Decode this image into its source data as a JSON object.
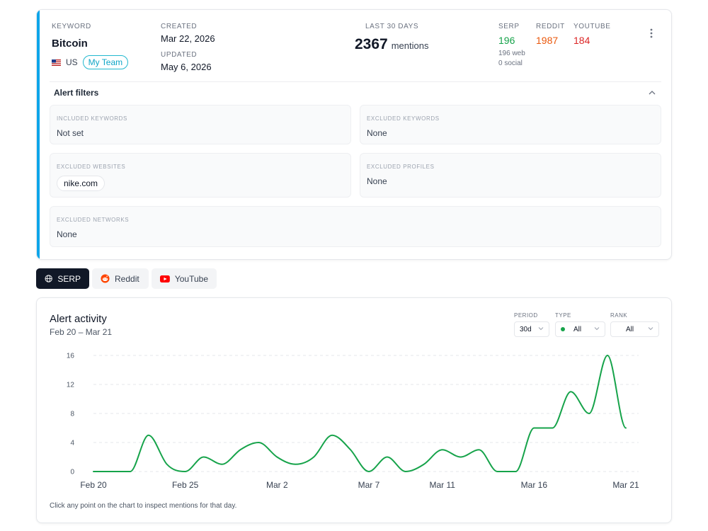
{
  "keyword": {
    "label": "KEYWORD",
    "name": "Bitcoin",
    "country": "US",
    "team": "My Team"
  },
  "dates": {
    "created_label": "CREATED",
    "created": "Mar 22, 2026",
    "updated_label": "UPDATED",
    "updated": "May 6, 2026"
  },
  "summary": {
    "label": "LAST 30 DAYS",
    "count": "2367",
    "unit": "mentions"
  },
  "sources": {
    "serp_label": "SERP",
    "serp_value": "196",
    "serp_web": "196 web",
    "serp_social": "0 social",
    "reddit_label": "REDDIT",
    "reddit_value": "1987",
    "youtube_label": "YOUTUBE",
    "youtube_value": "184"
  },
  "filters": {
    "title": "Alert filters",
    "included_keywords_label": "INCLUDED KEYWORDS",
    "included_keywords": "Not set",
    "excluded_keywords_label": "EXCLUDED KEYWORDS",
    "excluded_keywords": "None",
    "excluded_websites_label": "EXCLUDED WEBSITES",
    "excluded_websites_chip": "nike.com",
    "excluded_profiles_label": "EXCLUDED PROFILES",
    "excluded_profiles": "None",
    "excluded_networks_label": "EXCLUDED NETWORKS",
    "excluded_networks": "None"
  },
  "tabs": {
    "serp": "SERP",
    "reddit": "Reddit",
    "youtube": "YouTube"
  },
  "activity": {
    "title": "Alert activity",
    "range": "Feb 20 – Mar 21",
    "period_label": "PERIOD",
    "period_value": "30d",
    "type_label": "TYPE",
    "type_value": "All",
    "rank_label": "RANK",
    "rank_value": "All",
    "hint": "Click any point on the chart to inspect mentions for that day."
  },
  "colors": {
    "accent": "#0ea5e9",
    "line": "#16a34a",
    "serp": "#16a34a",
    "reddit": "#ea580c",
    "youtube": "#dc2626"
  },
  "chart_data": {
    "type": "line",
    "title": "",
    "xlabel": "",
    "ylabel": "",
    "ylim": [
      0,
      16
    ],
    "yticks": [
      0,
      4,
      8,
      12,
      16
    ],
    "grid": true,
    "x": [
      "Feb 20",
      "Feb 21",
      "Feb 22",
      "Feb 23",
      "Feb 24",
      "Feb 25",
      "Feb 26",
      "Feb 27",
      "Feb 28",
      "Mar 1",
      "Mar 2",
      "Mar 3",
      "Mar 4",
      "Mar 5",
      "Mar 6",
      "Mar 7",
      "Mar 8",
      "Mar 9",
      "Mar 10",
      "Mar 11",
      "Mar 12",
      "Mar 13",
      "Mar 14",
      "Mar 15",
      "Mar 16",
      "Mar 17",
      "Mar 18",
      "Mar 19",
      "Mar 20",
      "Mar 21"
    ],
    "xtick_labels": [
      {
        "label": "Feb 20",
        "index": 0
      },
      {
        "label": "Feb 25",
        "index": 5
      },
      {
        "label": "Mar 2",
        "index": 10
      },
      {
        "label": "Mar 7",
        "index": 15
      },
      {
        "label": "Mar 11",
        "index": 19
      },
      {
        "label": "Mar 16",
        "index": 24
      },
      {
        "label": "Mar 21",
        "index": 29
      }
    ],
    "series": [
      {
        "values": [
          0,
          0,
          0,
          5,
          1,
          0,
          2,
          1,
          3,
          4,
          2,
          1,
          2,
          5,
          3,
          0,
          2,
          0,
          1,
          3,
          2,
          3,
          0,
          0,
          6,
          6,
          11,
          8,
          16,
          6
        ]
      }
    ]
  }
}
